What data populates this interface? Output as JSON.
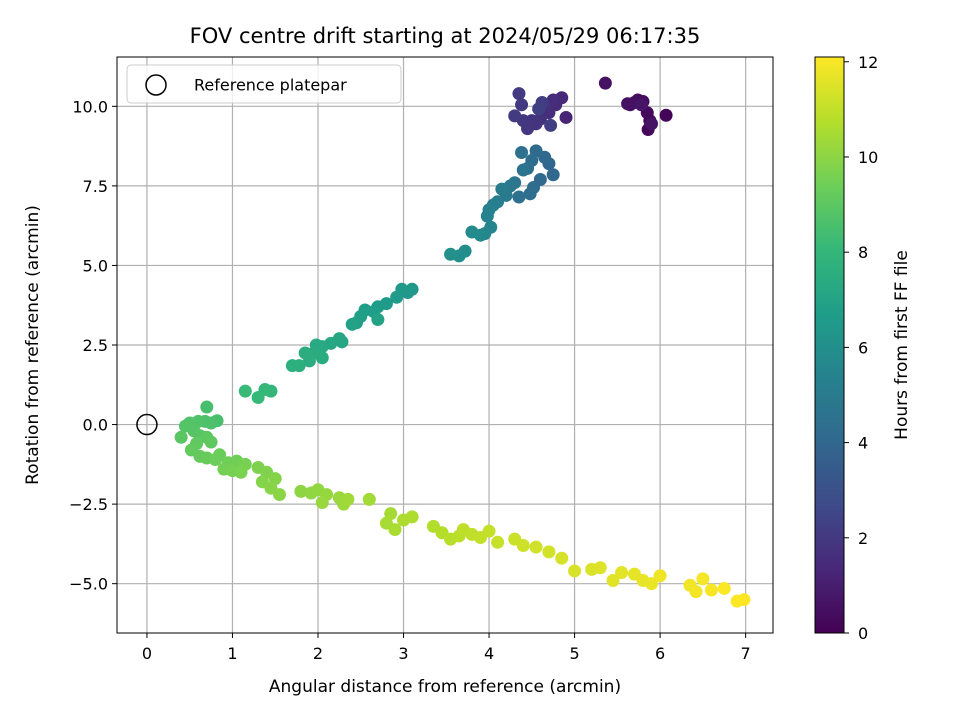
{
  "chart_data": {
    "type": "scatter",
    "title": "FOV centre drift starting at 2024/05/29 06:17:35",
    "xlabel": "Angular distance from reference (arcmin)",
    "ylabel": "Rotation from reference (arcmin)",
    "xlim": [
      -0.35,
      7.32
    ],
    "ylim": [
      -6.55,
      11.55
    ],
    "xticks": [
      0,
      1,
      2,
      3,
      4,
      5,
      6,
      7
    ],
    "xtick_labels": [
      "0",
      "1",
      "2",
      "3",
      "4",
      "5",
      "6",
      "7"
    ],
    "yticks": [
      -5.0,
      -2.5,
      0.0,
      2.5,
      5.0,
      7.5,
      10.0
    ],
    "ytick_labels": [
      "−5.0",
      "−2.5",
      "0.0",
      "2.5",
      "5.0",
      "7.5",
      "10.0"
    ],
    "grid": true,
    "legend": {
      "position": "top-left",
      "entries": [
        {
          "label": "Reference platepar",
          "marker": "open-circle"
        }
      ]
    },
    "reference_point": {
      "x": 0,
      "y": 0
    },
    "colorbar": {
      "label": "Hours from first FF file",
      "colormap": "viridis",
      "range": [
        0,
        12.1
      ],
      "ticks": [
        0,
        2,
        4,
        6,
        8,
        10,
        12
      ],
      "tick_labels": [
        "0",
        "2",
        "4",
        "6",
        "8",
        "10",
        "12"
      ],
      "stops": [
        "#440154",
        "#482878",
        "#3e4a89",
        "#31688e",
        "#26828e",
        "#1f9e89",
        "#35b779",
        "#6ece58",
        "#b5de2b",
        "#fde725"
      ]
    },
    "points_columns": [
      "x",
      "y",
      "hours"
    ],
    "points": [
      [
        6.07,
        9.72,
        0.1
      ],
      [
        5.86,
        9.27,
        0.2
      ],
      [
        5.88,
        9.55,
        0.25
      ],
      [
        5.85,
        9.8,
        0.3
      ],
      [
        5.8,
        10.15,
        0.35
      ],
      [
        5.74,
        10.2,
        0.4
      ],
      [
        5.7,
        10.12,
        0.45
      ],
      [
        5.65,
        10.05,
        0.5
      ],
      [
        5.62,
        10.08,
        0.55
      ],
      [
        5.36,
        10.73,
        0.6
      ],
      [
        5.9,
        9.45,
        0.65
      ],
      [
        5.78,
        10.05,
        0.7
      ],
      [
        4.9,
        9.65,
        1.2
      ],
      [
        4.85,
        10.27,
        1.35
      ],
      [
        4.78,
        10.05,
        1.45
      ],
      [
        4.75,
        10.2,
        1.55
      ],
      [
        4.7,
        9.8,
        1.6
      ],
      [
        4.65,
        10.0,
        1.7
      ],
      [
        4.6,
        9.6,
        1.75
      ],
      [
        4.55,
        9.45,
        1.8
      ],
      [
        4.5,
        9.55,
        1.85
      ],
      [
        4.45,
        9.3,
        1.9
      ],
      [
        4.4,
        9.55,
        1.95
      ],
      [
        4.38,
        10.05,
        2.0
      ],
      [
        4.35,
        10.4,
        2.05
      ],
      [
        4.3,
        9.7,
        2.1
      ],
      [
        4.62,
        10.12,
        2.15
      ],
      [
        4.72,
        9.4,
        2.2
      ],
      [
        4.58,
        9.92,
        2.25
      ],
      [
        4.7,
        8.2,
        4.0
      ],
      [
        4.65,
        8.4,
        4.1
      ],
      [
        4.55,
        8.6,
        4.2
      ],
      [
        4.5,
        8.3,
        4.3
      ],
      [
        4.45,
        8.05,
        4.4
      ],
      [
        4.38,
        8.55,
        4.5
      ],
      [
        4.4,
        8.0,
        4.6
      ],
      [
        4.3,
        7.6,
        4.7
      ],
      [
        4.25,
        7.5,
        4.8
      ],
      [
        4.2,
        7.2,
        4.9
      ],
      [
        4.15,
        7.4,
        5.0
      ],
      [
        4.1,
        7.0,
        5.1
      ],
      [
        4.75,
        7.85,
        4.05
      ],
      [
        4.6,
        7.7,
        4.15
      ],
      [
        4.52,
        7.45,
        4.25
      ],
      [
        4.48,
        7.25,
        4.35
      ],
      [
        4.35,
        7.15,
        4.45
      ],
      [
        4.05,
        6.9,
        5.2
      ],
      [
        4.0,
        6.75,
        5.3
      ],
      [
        3.98,
        6.55,
        5.4
      ],
      [
        4.02,
        6.2,
        5.5
      ],
      [
        3.95,
        6.0,
        5.6
      ],
      [
        3.9,
        5.95,
        5.7
      ],
      [
        3.8,
        6.05,
        5.8
      ],
      [
        3.72,
        5.45,
        5.9
      ],
      [
        3.65,
        5.3,
        6.0
      ],
      [
        3.55,
        5.35,
        6.05
      ],
      [
        3.1,
        4.25,
        6.4
      ],
      [
        3.05,
        4.15,
        6.45
      ],
      [
        2.98,
        4.25,
        6.5
      ],
      [
        2.92,
        4.0,
        6.55
      ],
      [
        2.8,
        3.8,
        6.6
      ],
      [
        2.7,
        3.7,
        6.65
      ],
      [
        2.65,
        3.55,
        6.7
      ],
      [
        2.55,
        3.6,
        6.75
      ],
      [
        2.5,
        3.4,
        6.8
      ],
      [
        2.45,
        3.2,
        6.85
      ],
      [
        2.4,
        3.15,
        6.9
      ],
      [
        2.7,
        3.3,
        6.95
      ],
      [
        2.28,
        2.6,
        7.1
      ],
      [
        2.25,
        2.7,
        7.15
      ],
      [
        2.15,
        2.55,
        7.2
      ],
      [
        2.05,
        2.45,
        7.3
      ],
      [
        1.98,
        2.5,
        7.35
      ],
      [
        1.95,
        2.25,
        7.4
      ],
      [
        2.05,
        2.1,
        7.45
      ],
      [
        1.9,
        2.0,
        7.5
      ],
      [
        1.85,
        2.25,
        7.55
      ],
      [
        1.78,
        1.85,
        7.6
      ],
      [
        1.7,
        1.85,
        7.65
      ],
      [
        1.45,
        1.05,
        8.0
      ],
      [
        1.38,
        1.1,
        8.05
      ],
      [
        1.3,
        0.85,
        8.1
      ],
      [
        1.15,
        1.05,
        8.15
      ],
      [
        0.7,
        0.55,
        8.5
      ],
      [
        0.82,
        0.12,
        8.55
      ],
      [
        0.75,
        0.05,
        8.6
      ],
      [
        0.68,
        0.1,
        8.65
      ],
      [
        0.6,
        0.1,
        8.7
      ],
      [
        0.5,
        0.05,
        8.75
      ],
      [
        0.45,
        -0.05,
        8.8
      ],
      [
        0.55,
        -0.2,
        8.85
      ],
      [
        0.62,
        -0.35,
        8.9
      ],
      [
        0.4,
        -0.4,
        8.95
      ],
      [
        0.7,
        -0.4,
        9.0
      ],
      [
        0.75,
        -0.55,
        9.05
      ],
      [
        0.58,
        -0.6,
        9.1
      ],
      [
        0.52,
        -0.8,
        9.15
      ],
      [
        0.62,
        -1.0,
        9.2
      ],
      [
        0.7,
        -1.05,
        9.25
      ],
      [
        0.85,
        -0.95,
        9.3
      ],
      [
        0.8,
        -1.1,
        9.35
      ],
      [
        0.95,
        -1.2,
        9.4
      ],
      [
        1.05,
        -1.15,
        9.45
      ],
      [
        0.9,
        -1.4,
        9.5
      ],
      [
        1.0,
        -1.45,
        9.55
      ],
      [
        1.15,
        -1.25,
        9.6
      ],
      [
        1.1,
        -1.5,
        9.65
      ],
      [
        1.3,
        -1.35,
        9.7
      ],
      [
        1.4,
        -1.5,
        9.75
      ],
      [
        1.35,
        -1.8,
        9.8
      ],
      [
        1.5,
        -1.7,
        9.85
      ],
      [
        1.45,
        -2.0,
        9.9
      ],
      [
        1.55,
        -2.2,
        9.95
      ],
      [
        1.8,
        -2.1,
        10.0
      ],
      [
        1.92,
        -2.15,
        10.05
      ],
      [
        2.0,
        -2.05,
        10.1
      ],
      [
        2.1,
        -2.2,
        10.15
      ],
      [
        2.05,
        -2.45,
        10.2
      ],
      [
        2.25,
        -2.3,
        10.25
      ],
      [
        2.3,
        -2.5,
        10.3
      ],
      [
        2.35,
        -2.35,
        10.35
      ],
      [
        2.6,
        -2.35,
        10.4
      ],
      [
        2.85,
        -2.8,
        10.45
      ],
      [
        2.8,
        -3.1,
        10.5
      ],
      [
        2.9,
        -3.3,
        10.55
      ],
      [
        3.0,
        -3.0,
        10.6
      ],
      [
        3.1,
        -2.9,
        10.65
      ],
      [
        3.35,
        -3.2,
        10.7
      ],
      [
        3.45,
        -3.4,
        10.75
      ],
      [
        3.55,
        -3.6,
        10.8
      ],
      [
        3.65,
        -3.5,
        10.85
      ],
      [
        3.7,
        -3.3,
        10.9
      ],
      [
        3.8,
        -3.45,
        10.95
      ],
      [
        3.9,
        -3.55,
        11.0
      ],
      [
        4.0,
        -3.35,
        11.05
      ],
      [
        4.1,
        -3.7,
        11.1
      ],
      [
        4.3,
        -3.6,
        11.15
      ],
      [
        4.4,
        -3.8,
        11.2
      ],
      [
        4.55,
        -3.85,
        11.25
      ],
      [
        4.7,
        -4.0,
        11.3
      ],
      [
        4.85,
        -4.2,
        11.35
      ],
      [
        5.0,
        -4.6,
        11.4
      ],
      [
        5.2,
        -4.55,
        11.45
      ],
      [
        5.3,
        -4.5,
        11.5
      ],
      [
        5.45,
        -4.9,
        11.55
      ],
      [
        5.55,
        -4.65,
        11.6
      ],
      [
        5.7,
        -4.7,
        11.65
      ],
      [
        5.8,
        -4.9,
        11.7
      ],
      [
        5.9,
        -5.0,
        11.75
      ],
      [
        6.0,
        -4.75,
        11.8
      ],
      [
        6.35,
        -5.05,
        11.85
      ],
      [
        6.42,
        -5.25,
        11.9
      ],
      [
        6.5,
        -4.85,
        11.95
      ],
      [
        6.6,
        -5.2,
        12.0
      ],
      [
        6.75,
        -5.15,
        12.05
      ],
      [
        6.9,
        -5.55,
        12.08
      ],
      [
        6.98,
        -5.5,
        12.1
      ]
    ]
  }
}
